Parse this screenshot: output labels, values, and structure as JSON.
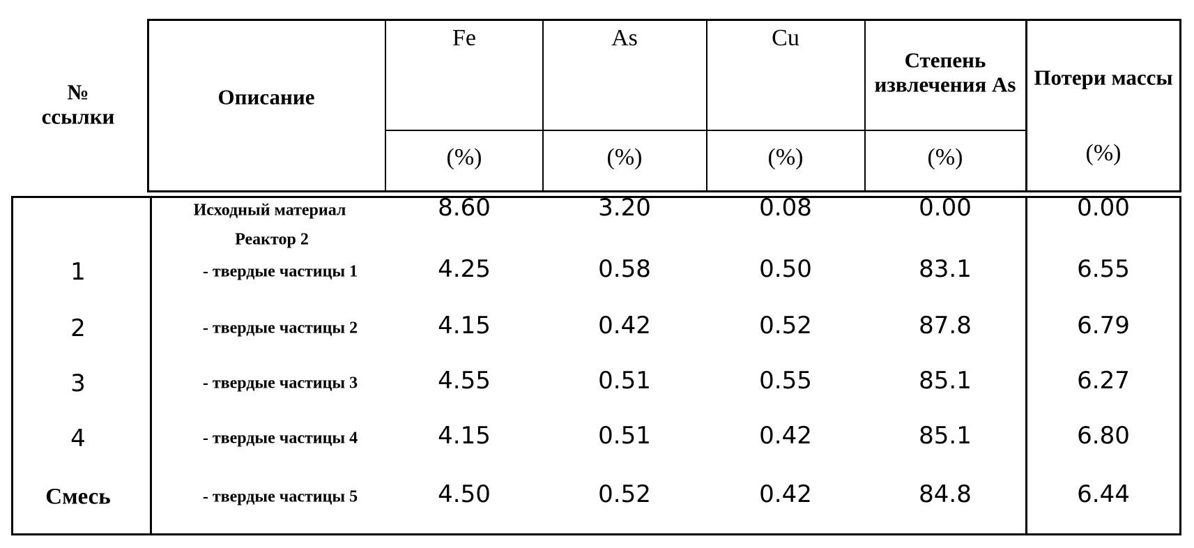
{
  "table": {
    "header": {
      "ref": "№ ссылки",
      "description": "Описание",
      "columns": [
        "Fe",
        "As",
        "Cu",
        "Степень извлечения As",
        "Потери массы"
      ],
      "units": [
        "(%)",
        "(%)",
        "(%)",
        "(%)",
        "(%)"
      ]
    },
    "group": "Реактор 2",
    "rows": [
      {
        "description": "Исходный материал",
        "cells": [
          "8.60",
          "3.20",
          "0.08",
          "0.00",
          "0.00"
        ]
      },
      {
        "ref": "1",
        "description": "- твердые частицы 1",
        "cells": [
          "4.25",
          "0.58",
          "0.50",
          "83.1",
          "6.55"
        ]
      },
      {
        "ref": "2",
        "description": "- твердые частицы 2",
        "cells": [
          "4.15",
          "0.42",
          "0.52",
          "87.8",
          "6.79"
        ]
      },
      {
        "ref": "3",
        "description": "- твердые частицы 3",
        "cells": [
          "4.55",
          "0.51",
          "0.55",
          "85.1",
          "6.27"
        ]
      },
      {
        "ref": "4",
        "description": "- твердые частицы 4",
        "cells": [
          "4.15",
          "0.51",
          "0.42",
          "85.1",
          "6.80"
        ]
      },
      {
        "ref": "Смесь",
        "description": "- твердые частицы 5",
        "cells": [
          "4.50",
          "0.52",
          "0.42",
          "84.8",
          "6.44"
        ]
      }
    ]
  }
}
